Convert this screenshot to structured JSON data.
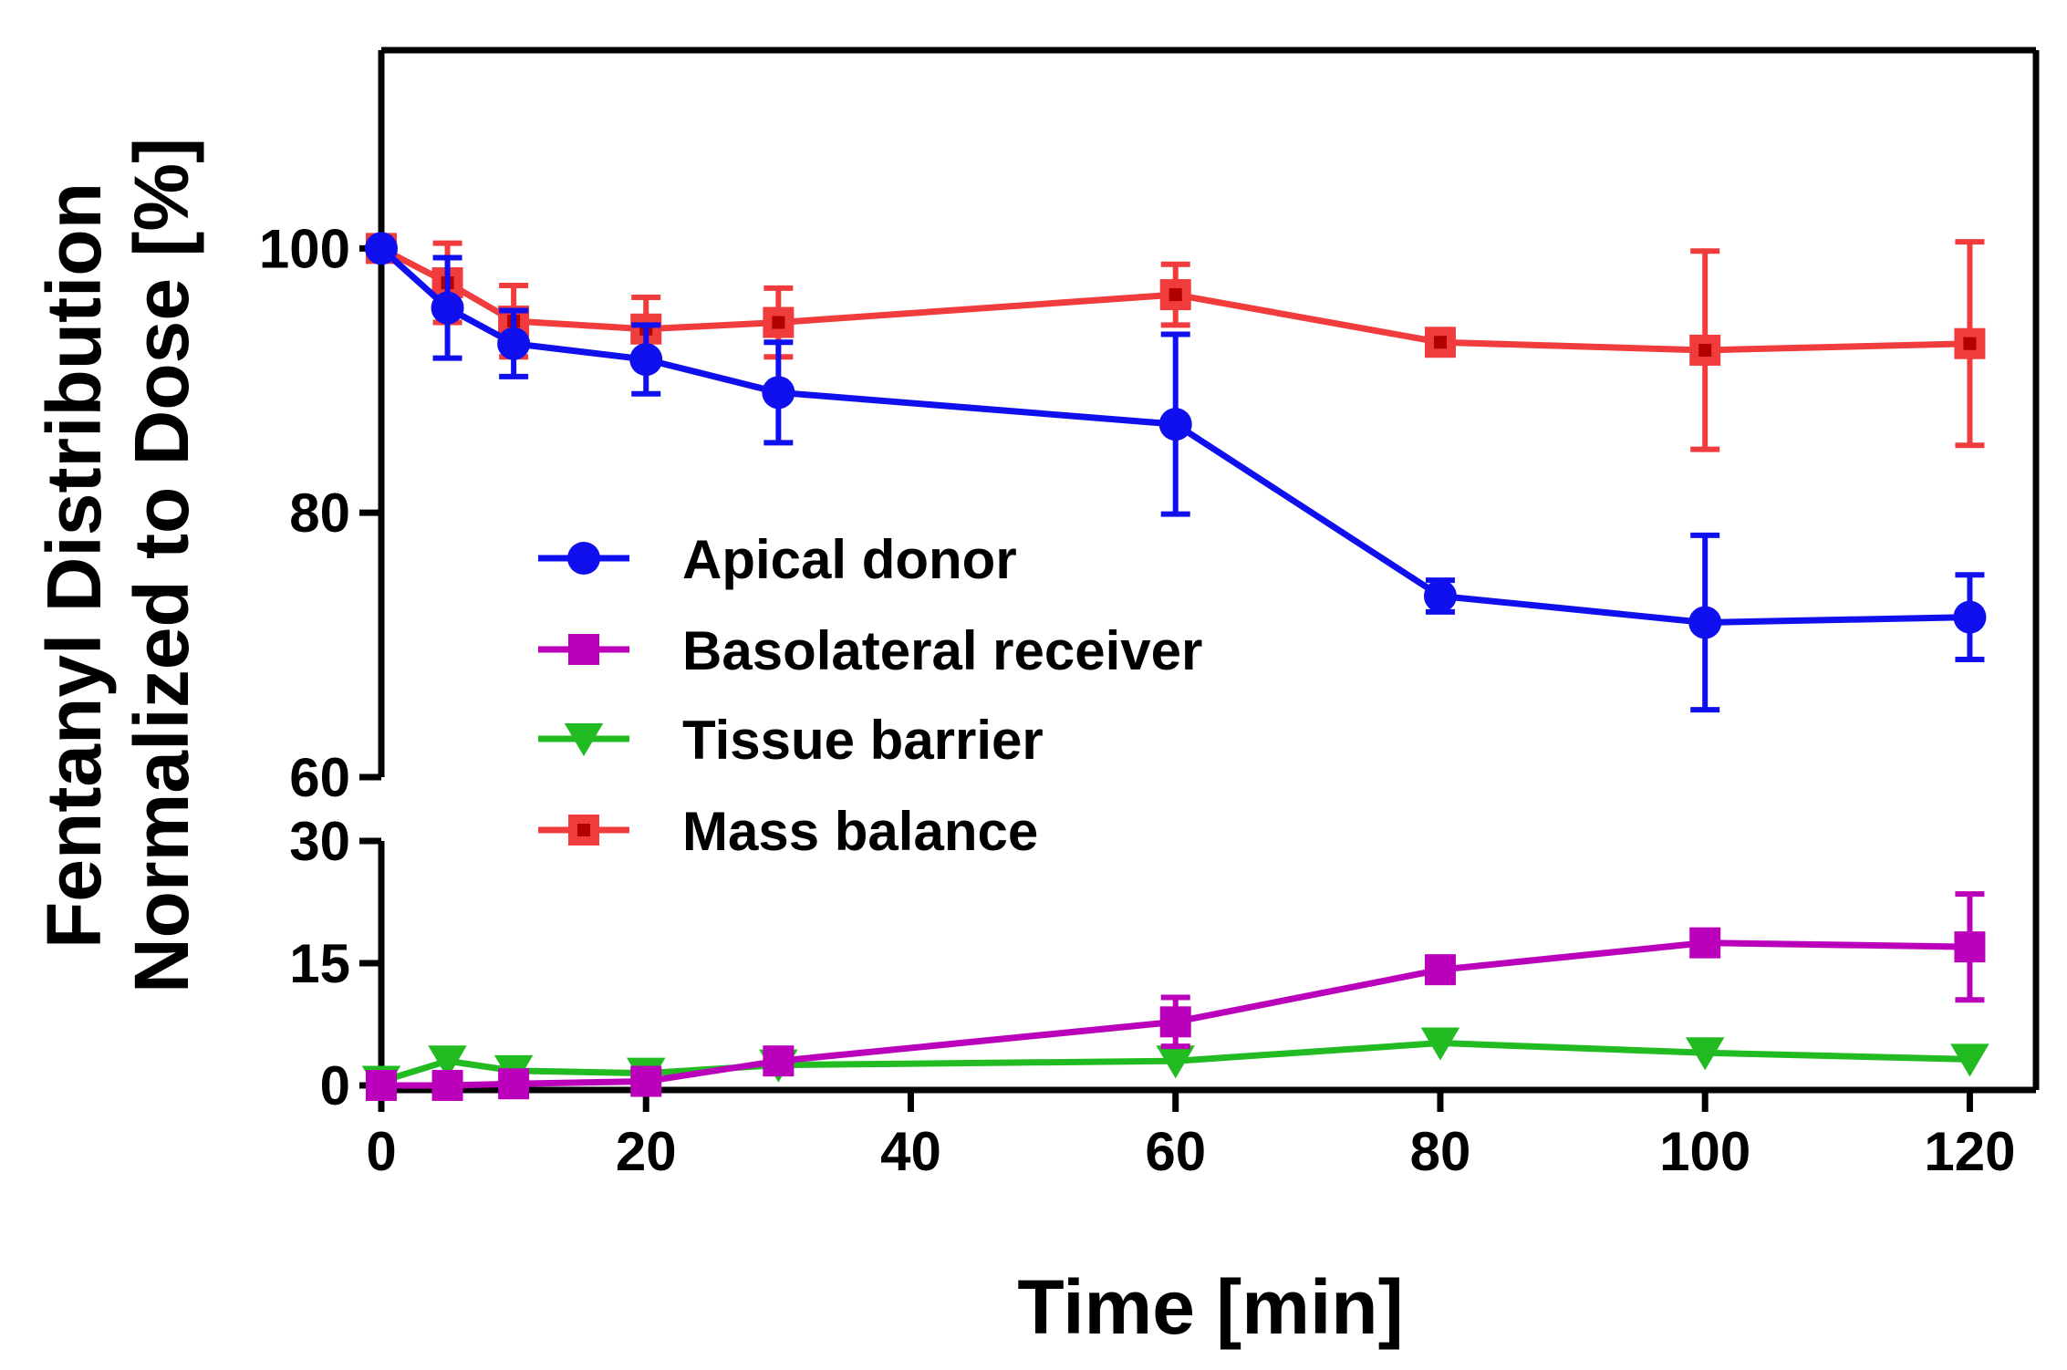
{
  "chart_data": {
    "type": "line",
    "xlabel": "Time [min]",
    "ylabel_lines": [
      "Fentanyl Distribution",
      "Normalized to Dose [%]"
    ],
    "xlim": [
      0,
      125
    ],
    "x_ticks": [
      0,
      20,
      40,
      60,
      80,
      100,
      120
    ],
    "ylim_upper": [
      60,
      115
    ],
    "y_ticks_upper": [
      60,
      80,
      100
    ],
    "ylim_lower": [
      0,
      30
    ],
    "y_ticks_lower": [
      0,
      15,
      30
    ],
    "broken_y_axis": true,
    "legend_position": "center-left",
    "series": [
      {
        "name": "Apical donor",
        "color": "#1010ee",
        "marker": "circle",
        "x": [
          0,
          5,
          10,
          20,
          30,
          60,
          80,
          100,
          120
        ],
        "y": [
          100,
          95.5,
          92.8,
          91.6,
          89.1,
          86.7,
          73.7,
          71.7,
          72.1
        ],
        "err": [
          0,
          3.8,
          2.5,
          2.6,
          3.8,
          6.8,
          1.2,
          6.6,
          3.2
        ]
      },
      {
        "name": "Basolateral receiver",
        "color": "#bb00bb",
        "marker": "square",
        "x": [
          0,
          5,
          10,
          20,
          30,
          60,
          80,
          100,
          120
        ],
        "y": [
          0,
          0,
          0.2,
          0.5,
          3,
          7.8,
          14.2,
          17.5,
          17
        ],
        "err": [
          0,
          0,
          0,
          0,
          0,
          3,
          0,
          0,
          6.5
        ]
      },
      {
        "name": "Tissue barrier",
        "color": "#22bb22",
        "marker": "triangle-down",
        "x": [
          0,
          5,
          10,
          20,
          30,
          60,
          80,
          100,
          120
        ],
        "y": [
          0.5,
          3,
          1.8,
          1.5,
          2.5,
          3,
          5.2,
          4,
          3.2
        ],
        "err": [
          0,
          0,
          0,
          0,
          0,
          0,
          0,
          0,
          0
        ]
      },
      {
        "name": "Mass balance",
        "color": "#f03c3c",
        "marker": "square",
        "x": [
          0,
          5,
          10,
          20,
          30,
          60,
          80,
          100,
          120
        ],
        "y": [
          100,
          97.4,
          94.5,
          93.9,
          94.4,
          96.5,
          92.9,
          92.3,
          92.8
        ],
        "err": [
          0,
          3,
          2.7,
          2.4,
          2.6,
          2.3,
          0,
          7.5,
          7.7
        ]
      }
    ]
  }
}
